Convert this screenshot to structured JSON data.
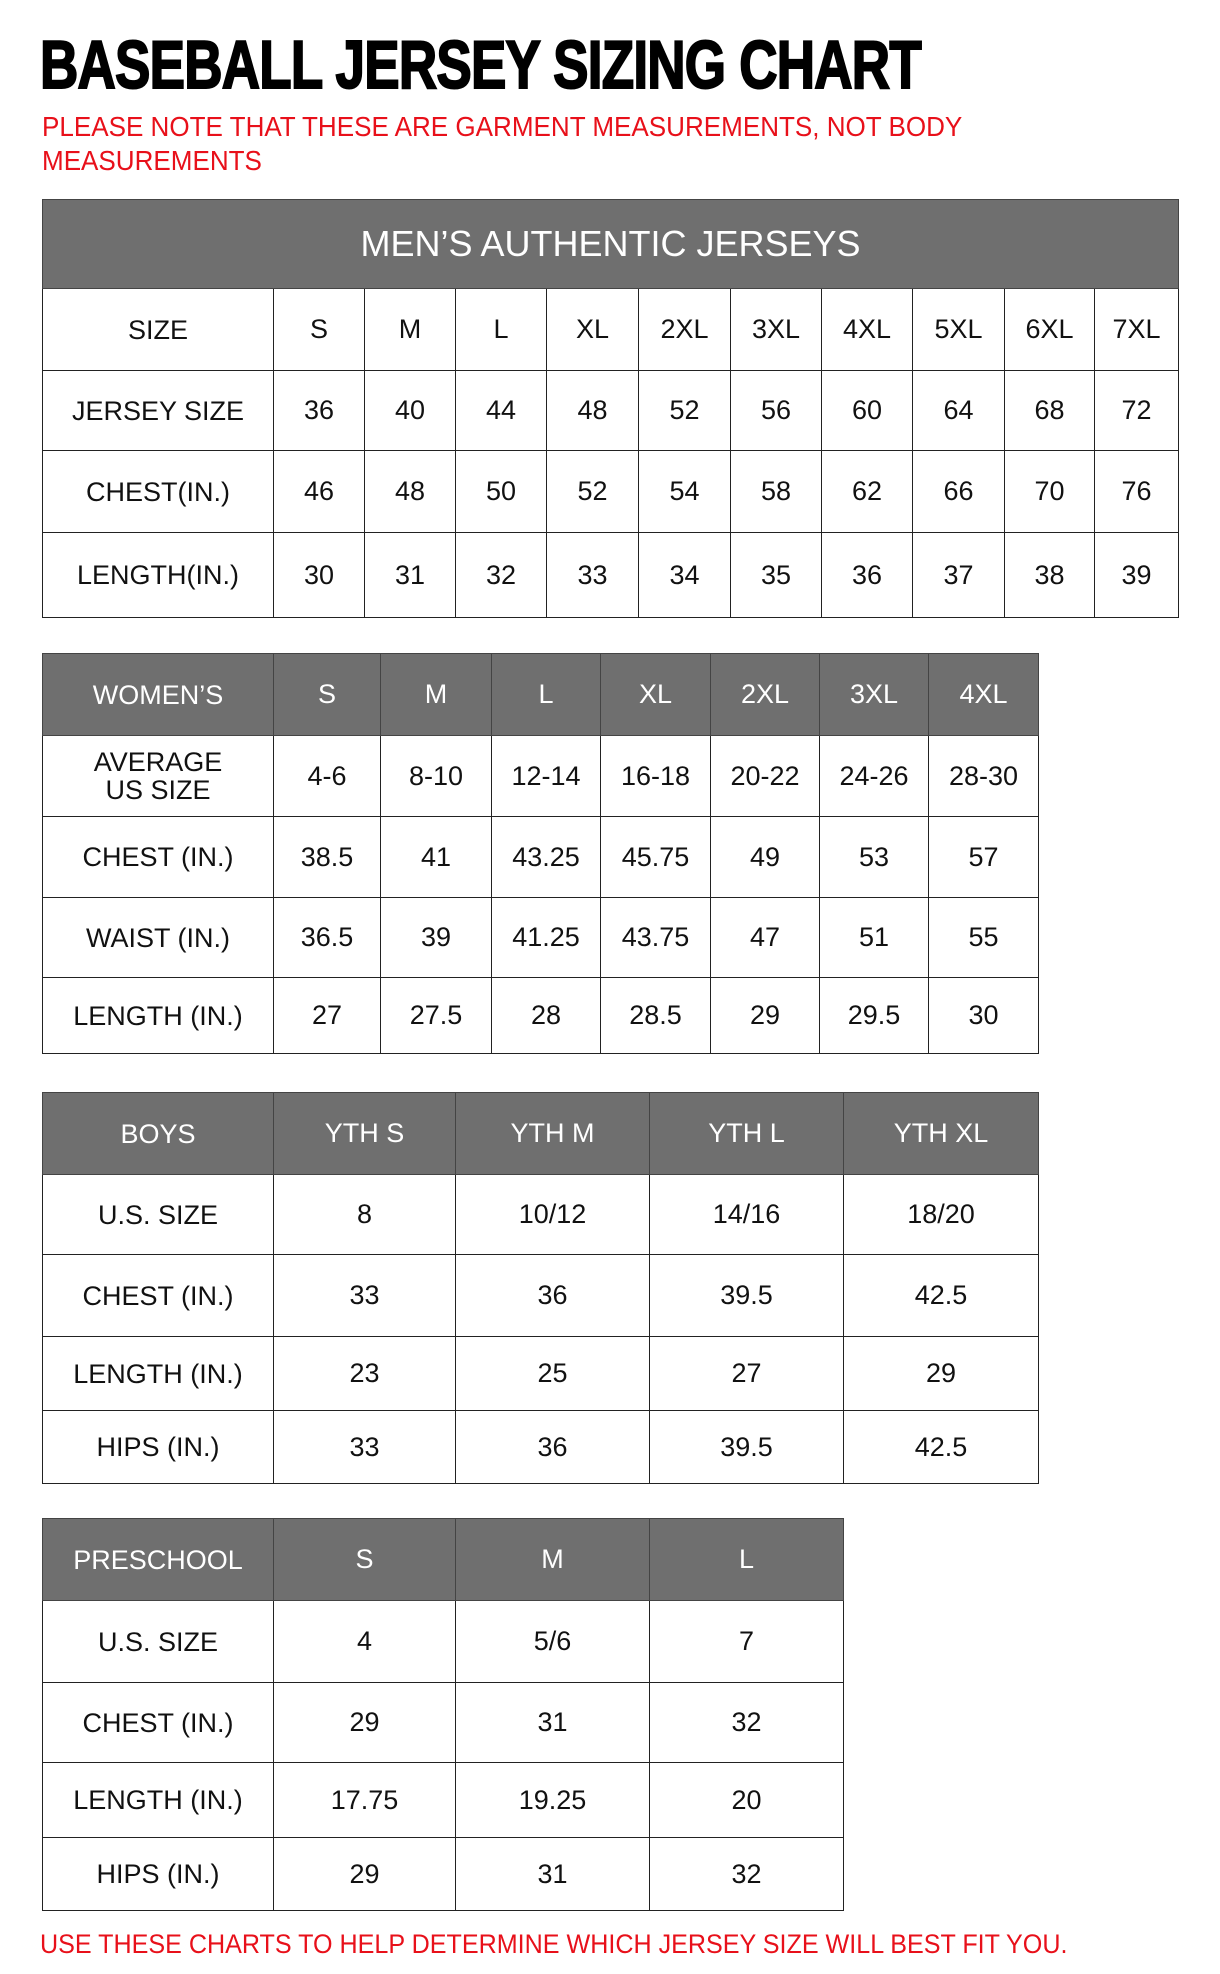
{
  "title": "BASEBALL JERSEY SIZING CHART",
  "note": "PLEASE NOTE THAT THESE ARE GARMENT MEASUREMENTS, NOT BODY MEASUREMENTS",
  "footer": "USE THESE CHARTS TO HELP DETERMINE WHICH JERSEY SIZE WILL BEST FIT YOU.",
  "colors": {
    "header_bg": "#6f6f6f",
    "note_red": "#e8101a"
  },
  "tables": [
    {
      "id": "mens",
      "banner": "MEN’S AUTHENTIC JERSEYS",
      "header_dark": false,
      "rows": [
        [
          "SIZE",
          "S",
          "M",
          "L",
          "XL",
          "2XL",
          "3XL",
          "4XL",
          "5XL",
          "6XL",
          "7XL"
        ],
        [
          "JERSEY SIZE",
          "36",
          "40",
          "44",
          "48",
          "52",
          "56",
          "60",
          "64",
          "68",
          "72"
        ],
        [
          "CHEST(IN.)",
          "46",
          "48",
          "50",
          "52",
          "54",
          "58",
          "62",
          "66",
          "70",
          "76"
        ],
        [
          "LENGTH(IN.)",
          "30",
          "31",
          "32",
          "33",
          "34",
          "35",
          "36",
          "37",
          "38",
          "39"
        ]
      ]
    },
    {
      "id": "womens",
      "header_dark": true,
      "rows": [
        [
          "WOMEN’S",
          "S",
          "M",
          "L",
          "XL",
          "2XL",
          "3XL",
          "4XL"
        ],
        [
          "AVERAGE\nUS SIZE",
          "4-6",
          "8-10",
          "12-14",
          "16-18",
          "20-22",
          "24-26",
          "28-30"
        ],
        [
          "CHEST (IN.)",
          "38.5",
          "41",
          "43.25",
          "45.75",
          "49",
          "53",
          "57"
        ],
        [
          "WAIST (IN.)",
          "36.5",
          "39",
          "41.25",
          "43.75",
          "47",
          "51",
          "55"
        ],
        [
          "LENGTH (IN.)",
          "27",
          "27.5",
          "28",
          "28.5",
          "29",
          "29.5",
          "30"
        ]
      ]
    },
    {
      "id": "boys",
      "header_dark": true,
      "rows": [
        [
          "BOYS",
          "YTH S",
          "YTH M",
          "YTH L",
          "YTH XL"
        ],
        [
          "U.S. SIZE",
          "8",
          "10/12",
          "14/16",
          "18/20"
        ],
        [
          "CHEST (IN.)",
          "33",
          "36",
          "39.5",
          "42.5"
        ],
        [
          "LENGTH (IN.)",
          "23",
          "25",
          "27",
          "29"
        ],
        [
          "HIPS (IN.)",
          "33",
          "36",
          "39.5",
          "42.5"
        ]
      ]
    },
    {
      "id": "preschool",
      "header_dark": true,
      "rows": [
        [
          "PRESCHOOL",
          "S",
          "M",
          "L"
        ],
        [
          "U.S. SIZE",
          "4",
          "5/6",
          "7"
        ],
        [
          "CHEST (IN.)",
          "29",
          "31",
          "32"
        ],
        [
          "LENGTH (IN.)",
          "17.75",
          "19.25",
          "20"
        ],
        [
          "HIPS (IN.)",
          "29",
          "31",
          "32"
        ]
      ]
    }
  ]
}
